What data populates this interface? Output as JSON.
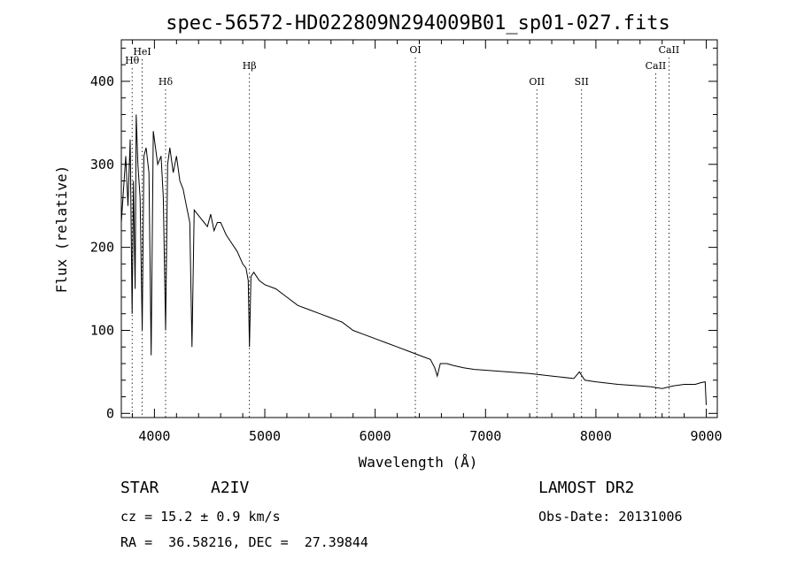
{
  "chart_data": {
    "type": "line",
    "title": "spec-56572-HD022809N294009B01_sp01-027.fits",
    "xlabel": "Wavelength (Å)",
    "ylabel": "Flux (relative)",
    "xlim": [
      3700,
      9100
    ],
    "ylim": [
      -5,
      450
    ],
    "xticks": [
      4000,
      5000,
      6000,
      7000,
      8000,
      9000
    ],
    "xtick_labels": [
      "4000",
      "5000",
      "6000",
      "7000",
      "8000",
      "9000"
    ],
    "yticks": [
      0,
      100,
      200,
      300,
      400
    ],
    "ytick_labels": [
      "0",
      "100",
      "200",
      "300",
      "400"
    ],
    "grid": false,
    "series": [
      {
        "x": [
          3700,
          3720,
          3740,
          3760,
          3780,
          3798,
          3810,
          3825,
          3835,
          3850,
          3870,
          3889,
          3905,
          3925,
          3950,
          3970,
          3990,
          4010,
          4030,
          4060,
          4080,
          4101,
          4120,
          4140,
          4170,
          4200,
          4230,
          4260,
          4290,
          4320,
          4340,
          4360,
          4390,
          4420,
          4450,
          4480,
          4510,
          4540,
          4570,
          4600,
          4650,
          4700,
          4750,
          4800,
          4830,
          4850,
          4861,
          4875,
          4900,
          4950,
          5000,
          5100,
          5200,
          5300,
          5400,
          5500,
          5600,
          5700,
          5800,
          5900,
          6000,
          6100,
          6200,
          6300,
          6400,
          6500,
          6540,
          6563,
          6590,
          6650,
          6700,
          6800,
          6900,
          7000,
          7200,
          7400,
          7600,
          7800,
          7850,
          7900,
          8000,
          8200,
          8400,
          8500,
          8600,
          8700,
          8800,
          8900,
          8950,
          8990,
          9000
        ],
        "y": [
          230,
          270,
          310,
          250,
          330,
          120,
          280,
          150,
          360,
          300,
          260,
          100,
          310,
          320,
          290,
          70,
          340,
          320,
          300,
          310,
          260,
          100,
          300,
          320,
          290,
          310,
          280,
          270,
          250,
          230,
          80,
          245,
          240,
          235,
          230,
          225,
          240,
          220,
          230,
          230,
          215,
          205,
          195,
          180,
          175,
          160,
          80,
          165,
          170,
          160,
          155,
          150,
          140,
          130,
          125,
          120,
          115,
          110,
          100,
          95,
          90,
          85,
          80,
          75,
          70,
          65,
          55,
          45,
          60,
          60,
          58,
          55,
          53,
          52,
          50,
          48,
          45,
          42,
          50,
          40,
          38,
          35,
          33,
          32,
          30,
          33,
          35,
          35,
          37,
          38,
          10
        ]
      }
    ],
    "lines": [
      {
        "label": "Hθ",
        "x": 3798
      },
      {
        "label": "HeI",
        "x": 3889
      },
      {
        "label": "Hδ",
        "x": 4101
      },
      {
        "label": "Hβ",
        "x": 4861
      },
      {
        "label": "OI",
        "x": 6364
      },
      {
        "label": "OII",
        "x": 7465
      },
      {
        "label": "SII",
        "x": 7870
      },
      {
        "label": "CaII",
        "x": 8542
      },
      {
        "label": "CaII",
        "x": 8662
      }
    ]
  },
  "info": {
    "object_type": "STAR",
    "subclass": "A2IV",
    "survey": "LAMOST DR2",
    "cz": "cz = 15.2 ± 0.9 km/s",
    "obs_date": "Obs-Date: 20131006",
    "coords": "RA =  36.58216, DEC =  27.39844"
  }
}
